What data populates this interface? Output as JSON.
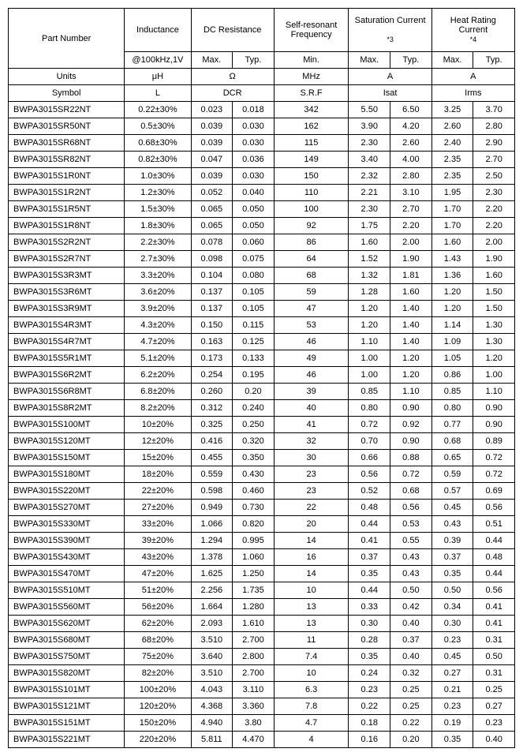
{
  "header": {
    "part_number": "Part Number",
    "inductance": "Inductance",
    "dc_resistance": "DC Resistance",
    "srf": "Self-resonant Frequency",
    "sat_current": "Saturation Current",
    "sat_note": "*3",
    "heat_rating": "Heat Rating Current",
    "heat_note": "*4",
    "cond": "@100kHz,1V",
    "max": "Max.",
    "typ": "Typ.",
    "min": "Min."
  },
  "units_row": {
    "label": "Units",
    "ind": "μH",
    "dcr": "Ω",
    "srf": "MHz",
    "sat": "A",
    "hr": "A"
  },
  "symbol_row": {
    "label": "Symbol",
    "ind": "L",
    "dcr": "DCR",
    "srf": "S.R.F",
    "sat": "Isat",
    "hr": "Irms"
  },
  "rows": [
    {
      "pn": "BWPA3015SR22NT",
      "ind": "0.22±30%",
      "dcr_max": "0.023",
      "dcr_typ": "0.018",
      "srf": "342",
      "sat_max": "5.50",
      "sat_typ": "6.50",
      "hr_max": "3.25",
      "hr_typ": "3.70"
    },
    {
      "pn": "BWPA3015SR50NT",
      "ind": "0.5±30%",
      "dcr_max": "0.039",
      "dcr_typ": "0.030",
      "srf": "162",
      "sat_max": "3.90",
      "sat_typ": "4.20",
      "hr_max": "2.60",
      "hr_typ": "2.80"
    },
    {
      "pn": "BWPA3015SR68NT",
      "ind": "0.68±30%",
      "dcr_max": "0.039",
      "dcr_typ": "0.030",
      "srf": "115",
      "sat_max": "2.30",
      "sat_typ": "2.60",
      "hr_max": "2.40",
      "hr_typ": "2.90"
    },
    {
      "pn": "BWPA3015SR82NT",
      "ind": "0.82±30%",
      "dcr_max": "0.047",
      "dcr_typ": "0.036",
      "srf": "149",
      "sat_max": "3.40",
      "sat_typ": "4.00",
      "hr_max": "2.35",
      "hr_typ": "2.70"
    },
    {
      "pn": "BWPA3015S1R0NT",
      "ind": "1.0±30%",
      "dcr_max": "0.039",
      "dcr_typ": "0.030",
      "srf": "150",
      "sat_max": "2.32",
      "sat_typ": "2.80",
      "hr_max": "2.35",
      "hr_typ": "2.50"
    },
    {
      "pn": "BWPA3015S1R2NT",
      "ind": "1.2±30%",
      "dcr_max": "0.052",
      "dcr_typ": "0.040",
      "srf": "110",
      "sat_max": "2.21",
      "sat_typ": "3.10",
      "hr_max": "1.95",
      "hr_typ": "2.30"
    },
    {
      "pn": "BWPA3015S1R5NT",
      "ind": "1.5±30%",
      "dcr_max": "0.065",
      "dcr_typ": "0.050",
      "srf": "100",
      "sat_max": "2.30",
      "sat_typ": "2.70",
      "hr_max": "1.70",
      "hr_typ": "2.20"
    },
    {
      "pn": "BWPA3015S1R8NT",
      "ind": "1.8±30%",
      "dcr_max": "0.065",
      "dcr_typ": "0.050",
      "srf": "92",
      "sat_max": "1.75",
      "sat_typ": "2.20",
      "hr_max": "1.70",
      "hr_typ": "2.20"
    },
    {
      "pn": "BWPA3015S2R2NT",
      "ind": "2.2±30%",
      "dcr_max": "0.078",
      "dcr_typ": "0.060",
      "srf": "86",
      "sat_max": "1.60",
      "sat_typ": "2.00",
      "hr_max": "1.60",
      "hr_typ": "2.00"
    },
    {
      "pn": "BWPA3015S2R7NT",
      "ind": "2.7±30%",
      "dcr_max": "0.098",
      "dcr_typ": "0.075",
      "srf": "64",
      "sat_max": "1.52",
      "sat_typ": "1.90",
      "hr_max": "1.43",
      "hr_typ": "1.90"
    },
    {
      "pn": "BWPA3015S3R3MT",
      "ind": "3.3±20%",
      "dcr_max": "0.104",
      "dcr_typ": "0.080",
      "srf": "68",
      "sat_max": "1.32",
      "sat_typ": "1.81",
      "hr_max": "1.36",
      "hr_typ": "1.60"
    },
    {
      "pn": "BWPA3015S3R6MT",
      "ind": "3.6±20%",
      "dcr_max": "0.137",
      "dcr_typ": "0.105",
      "srf": "59",
      "sat_max": "1.28",
      "sat_typ": "1.60",
      "hr_max": "1.20",
      "hr_typ": "1.50"
    },
    {
      "pn": "BWPA3015S3R9MT",
      "ind": "3.9±20%",
      "dcr_max": "0.137",
      "dcr_typ": "0.105",
      "srf": "47",
      "sat_max": "1.20",
      "sat_typ": "1.40",
      "hr_max": "1.20",
      "hr_typ": "1.50"
    },
    {
      "pn": "BWPA3015S4R3MT",
      "ind": "4.3±20%",
      "dcr_max": "0.150",
      "dcr_typ": "0.115",
      "srf": "53",
      "sat_max": "1.20",
      "sat_typ": "1.40",
      "hr_max": "1.14",
      "hr_typ": "1.30"
    },
    {
      "pn": "BWPA3015S4R7MT",
      "ind": "4.7±20%",
      "dcr_max": "0.163",
      "dcr_typ": "0.125",
      "srf": "46",
      "sat_max": "1.10",
      "sat_typ": "1.40",
      "hr_max": "1.09",
      "hr_typ": "1.30"
    },
    {
      "pn": "BWPA3015S5R1MT",
      "ind": "5.1±20%",
      "dcr_max": "0.173",
      "dcr_typ": "0.133",
      "srf": "49",
      "sat_max": "1.00",
      "sat_typ": "1.20",
      "hr_max": "1.05",
      "hr_typ": "1.20"
    },
    {
      "pn": "BWPA3015S6R2MT",
      "ind": "6.2±20%",
      "dcr_max": "0.254",
      "dcr_typ": "0.195",
      "srf": "46",
      "sat_max": "1.00",
      "sat_typ": "1.20",
      "hr_max": "0.86",
      "hr_typ": "1.00"
    },
    {
      "pn": "BWPA3015S6R8MT",
      "ind": "6.8±20%",
      "dcr_max": "0.260",
      "dcr_typ": "0.20",
      "srf": "39",
      "sat_max": "0.85",
      "sat_typ": "1.10",
      "hr_max": "0.85",
      "hr_typ": "1.10"
    },
    {
      "pn": "BWPA3015S8R2MT",
      "ind": "8.2±20%",
      "dcr_max": "0.312",
      "dcr_typ": "0.240",
      "srf": "40",
      "sat_max": "0.80",
      "sat_typ": "0.90",
      "hr_max": "0.80",
      "hr_typ": "0.90"
    },
    {
      "pn": "BWPA3015S100MT",
      "ind": "10±20%",
      "dcr_max": "0.325",
      "dcr_typ": "0.250",
      "srf": "41",
      "sat_max": "0.72",
      "sat_typ": "0.92",
      "hr_max": "0.77",
      "hr_typ": "0.90"
    },
    {
      "pn": "BWPA3015S120MT",
      "ind": "12±20%",
      "dcr_max": "0.416",
      "dcr_typ": "0.320",
      "srf": "32",
      "sat_max": "0.70",
      "sat_typ": "0.90",
      "hr_max": "0.68",
      "hr_typ": "0.89"
    },
    {
      "pn": "BWPA3015S150MT",
      "ind": "15±20%",
      "dcr_max": "0.455",
      "dcr_typ": "0.350",
      "srf": "30",
      "sat_max": "0.66",
      "sat_typ": "0.88",
      "hr_max": "0.65",
      "hr_typ": "0.72"
    },
    {
      "pn": "BWPA3015S180MT",
      "ind": "18±20%",
      "dcr_max": "0.559",
      "dcr_typ": "0.430",
      "srf": "23",
      "sat_max": "0.56",
      "sat_typ": "0.72",
      "hr_max": "0.59",
      "hr_typ": "0.72"
    },
    {
      "pn": "BWPA3015S220MT",
      "ind": "22±20%",
      "dcr_max": "0.598",
      "dcr_typ": "0.460",
      "srf": "23",
      "sat_max": "0.52",
      "sat_typ": "0.68",
      "hr_max": "0.57",
      "hr_typ": "0.69"
    },
    {
      "pn": "BWPA3015S270MT",
      "ind": "27±20%",
      "dcr_max": "0.949",
      "dcr_typ": "0.730",
      "srf": "22",
      "sat_max": "0.48",
      "sat_typ": "0.56",
      "hr_max": "0.45",
      "hr_typ": "0.56"
    },
    {
      "pn": "BWPA3015S330MT",
      "ind": "33±20%",
      "dcr_max": "1.066",
      "dcr_typ": "0.820",
      "srf": "20",
      "sat_max": "0.44",
      "sat_typ": "0.53",
      "hr_max": "0.43",
      "hr_typ": "0.51"
    },
    {
      "pn": "BWPA3015S390MT",
      "ind": "39±20%",
      "dcr_max": "1.294",
      "dcr_typ": "0.995",
      "srf": "14",
      "sat_max": "0.41",
      "sat_typ": "0.55",
      "hr_max": "0.39",
      "hr_typ": "0.44"
    },
    {
      "pn": "BWPA3015S430MT",
      "ind": "43±20%",
      "dcr_max": "1.378",
      "dcr_typ": "1.060",
      "srf": "16",
      "sat_max": "0.37",
      "sat_typ": "0.43",
      "hr_max": "0.37",
      "hr_typ": "0.48"
    },
    {
      "pn": "BWPA3015S470MT",
      "ind": "47±20%",
      "dcr_max": "1.625",
      "dcr_typ": "1.250",
      "srf": "14",
      "sat_max": "0.35",
      "sat_typ": "0.43",
      "hr_max": "0.35",
      "hr_typ": "0.44"
    },
    {
      "pn": "BWPA3015S510MT",
      "ind": "51±20%",
      "dcr_max": "2.256",
      "dcr_typ": "1.735",
      "srf": "10",
      "sat_max": "0.44",
      "sat_typ": "0.50",
      "hr_max": "0.50",
      "hr_typ": "0.56"
    },
    {
      "pn": "BWPA3015S560MT",
      "ind": "56±20%",
      "dcr_max": "1.664",
      "dcr_typ": "1.280",
      "srf": "13",
      "sat_max": "0.33",
      "sat_typ": "0.42",
      "hr_max": "0.34",
      "hr_typ": "0.41"
    },
    {
      "pn": "BWPA3015S620MT",
      "ind": "62±20%",
      "dcr_max": "2.093",
      "dcr_typ": "1.610",
      "srf": "13",
      "sat_max": "0.30",
      "sat_typ": "0.40",
      "hr_max": "0.30",
      "hr_typ": "0.41"
    },
    {
      "pn": "BWPA3015S680MT",
      "ind": "68±20%",
      "dcr_max": "3.510",
      "dcr_typ": "2.700",
      "srf": "11",
      "sat_max": "0.28",
      "sat_typ": "0.37",
      "hr_max": "0.23",
      "hr_typ": "0.31"
    },
    {
      "pn": "BWPA3015S750MT",
      "ind": "75±20%",
      "dcr_max": "3.640",
      "dcr_typ": "2.800",
      "srf": "7.4",
      "sat_max": "0.35",
      "sat_typ": "0.40",
      "hr_max": "0.45",
      "hr_typ": "0.50"
    },
    {
      "pn": "BWPA3015S820MT",
      "ind": "82±20%",
      "dcr_max": "3.510",
      "dcr_typ": "2.700",
      "srf": "10",
      "sat_max": "0.24",
      "sat_typ": "0.32",
      "hr_max": "0.27",
      "hr_typ": "0.31"
    },
    {
      "pn": "BWPA3015S101MT",
      "ind": "100±20%",
      "dcr_max": "4.043",
      "dcr_typ": "3.110",
      "srf": "6.3",
      "sat_max": "0.23",
      "sat_typ": "0.25",
      "hr_max": "0.21",
      "hr_typ": "0.25"
    },
    {
      "pn": "BWPA3015S121MT",
      "ind": "120±20%",
      "dcr_max": "4.368",
      "dcr_typ": "3.360",
      "srf": "7.8",
      "sat_max": "0.22",
      "sat_typ": "0.25",
      "hr_max": "0.23",
      "hr_typ": "0.27"
    },
    {
      "pn": "BWPA3015S151MT",
      "ind": "150±20%",
      "dcr_max": "4.940",
      "dcr_typ": "3.80",
      "srf": "4.7",
      "sat_max": "0.18",
      "sat_typ": "0.22",
      "hr_max": "0.19",
      "hr_typ": "0.23"
    },
    {
      "pn": "BWPA3015S221MT",
      "ind": "220±20%",
      "dcr_max": "5.811",
      "dcr_typ": "4.470",
      "srf": "4",
      "sat_max": "0.16",
      "sat_typ": "0.20",
      "hr_max": "0.35",
      "hr_typ": "0.40"
    }
  ]
}
